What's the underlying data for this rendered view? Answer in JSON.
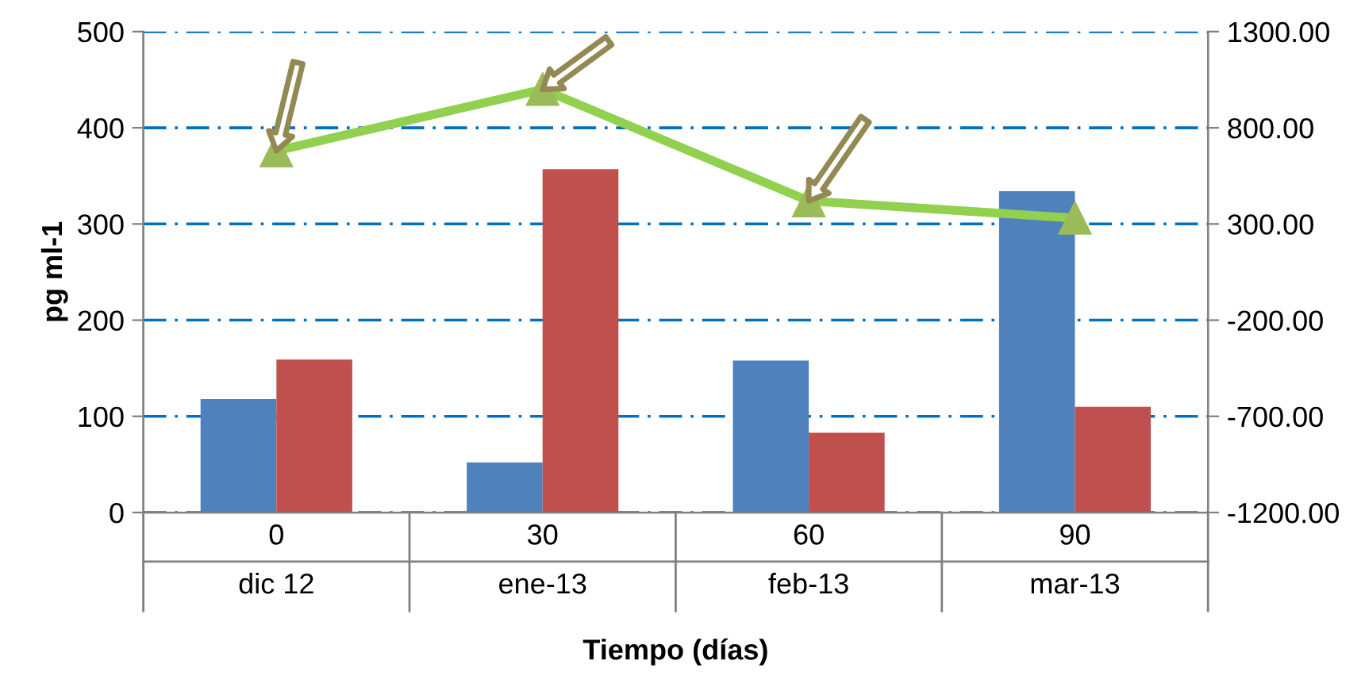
{
  "chart_data": {
    "type": "bar",
    "xlabel": "Tiempo (días)",
    "ylabel": "pg ml-1",
    "categories": [
      "0\ndic 12",
      "30\nene-13",
      "60\nfeb-13",
      "90\nmar-13"
    ],
    "series": [
      {
        "color": "#4f81bd",
        "values": [
          118,
          52,
          158,
          334
        ]
      },
      {
        "color": "#c0504d",
        "values": [
          159,
          357,
          83,
          110
        ]
      },
      {
        "type": "line",
        "axis": "y2",
        "color": "#92d050",
        "marker": "triangle",
        "values": [
          680,
          1000,
          420,
          330
        ]
      }
    ],
    "ylim": [
      0,
      500
    ],
    "yticks": [
      0,
      100,
      200,
      300,
      400,
      500
    ],
    "y2lim": [
      -1200,
      1300
    ],
    "y2ticks": [
      {
        "value": -1200,
        "label": "-1200.00"
      },
      {
        "value": -700,
        "label": "-700.00"
      },
      {
        "value": -200,
        "label": "-200.00"
      },
      {
        "value": 300,
        "label": "300.00"
      },
      {
        "value": 800,
        "label": "800.00"
      },
      {
        "value": 1300,
        "label": "1300.00"
      }
    ],
    "grid": "y",
    "legend": false
  }
}
